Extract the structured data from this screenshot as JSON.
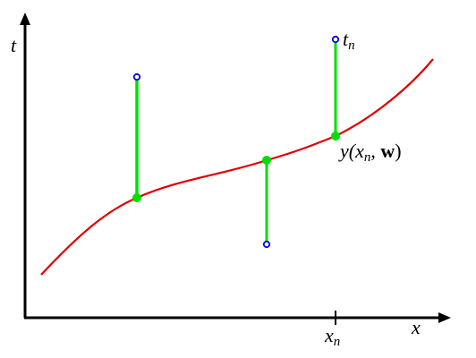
{
  "labels": {
    "y_axis": "t",
    "x_axis": "x",
    "x_tick": {
      "base": "x",
      "sub": "n"
    },
    "target": {
      "base": "t",
      "sub": "n"
    },
    "prediction": {
      "open": "y(",
      "base": "x",
      "sub": "n",
      "sep": ", ",
      "weights": "w",
      "close": ")"
    }
  }
}
